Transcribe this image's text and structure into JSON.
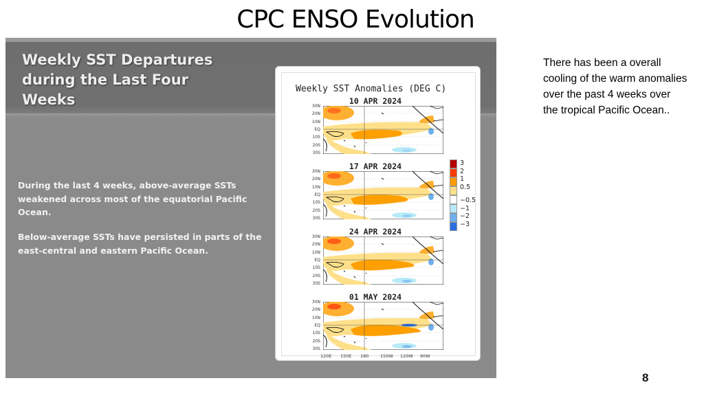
{
  "slide": {
    "title": "CPC ENSO Evolution",
    "page_number": "8"
  },
  "panel": {
    "heading": "Weekly SST Departures during the Last Four Weeks",
    "paragraphs": [
      "During the last 4 weeks, above-average SSTs weakened across most of the equatorial Pacific Ocean.",
      "Below-average SSTs have persisted in parts of the east-central and eastern Pacific Ocean."
    ]
  },
  "figure": {
    "title": "Weekly SST Anomalies (DEG C)",
    "dates": [
      "10 APR 2024",
      "17 APR 2024",
      "24 APR 2024",
      "01 MAY 2024"
    ],
    "lat_labels": [
      "30N",
      "20N",
      "10N",
      "EQ",
      "10S",
      "20S",
      "30S"
    ],
    "lon_labels": [
      "120E",
      "150E",
      "180",
      "150W",
      "120W",
      "90W"
    ],
    "legend": [
      {
        "label": "3",
        "color": "#b40000"
      },
      {
        "label": "2",
        "color": "#ff3c00"
      },
      {
        "label": "1",
        "color": "#ff9a00"
      },
      {
        "label": "0.5",
        "color": "#ffe08a"
      },
      {
        "label": "−0.5",
        "color": "#ffffff"
      },
      {
        "label": "−1",
        "color": "#b8eaf8"
      },
      {
        "label": "−2",
        "color": "#6fb0ee"
      },
      {
        "label": "−3",
        "color": "#2a6fe0"
      }
    ]
  },
  "side_note": "There has been a overall cooling of the warm anomalies over the past 4 weeks over the tropical Pacific Ocean.."
}
